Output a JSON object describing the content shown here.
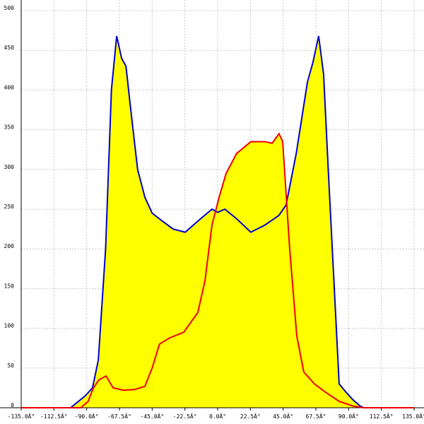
{
  "chart_data": {
    "type": "area",
    "xlim": [
      -135,
      135
    ],
    "ylim": [
      0,
      500
    ],
    "xticks": [
      {
        "value": -135,
        "label": "-135.0Â°"
      },
      {
        "value": -112.5,
        "label": "-112.5Â°"
      },
      {
        "value": -90,
        "label": "-90.0Â°"
      },
      {
        "value": -67.5,
        "label": "-67.5Â°"
      },
      {
        "value": -45,
        "label": "-45.0Â°"
      },
      {
        "value": -22.5,
        "label": "-22.5Â°"
      },
      {
        "value": 0,
        "label": "0.0Â°"
      },
      {
        "value": 22.5,
        "label": "22.5Â°"
      },
      {
        "value": 45,
        "label": "45.0Â°"
      },
      {
        "value": 67.5,
        "label": "67.5Â°"
      },
      {
        "value": 90,
        "label": "90.0Â°"
      },
      {
        "value": 112.5,
        "label": "112.5Â°"
      },
      {
        "value": 135,
        "label": "135.0Â°"
      }
    ],
    "yticks": [
      0,
      50,
      100,
      150,
      200,
      250,
      300,
      350,
      400,
      450,
      500
    ],
    "grid": true,
    "fill": "#ffff00",
    "series": [
      {
        "color": "#0000cc",
        "x": [
          -135,
          -101,
          -91,
          -86,
          -82,
          -77,
          -73,
          -69.4,
          -66,
          -63,
          -60,
          -55,
          -50,
          -45,
          -38,
          -30.6,
          -22.3,
          -13.6,
          -3.9,
          0,
          4.9,
          13,
          22.8,
          32.5,
          42,
          47,
          54,
          61.7,
          65.5,
          69.4,
          72.8,
          76,
          81,
          83.5,
          88,
          93,
          98,
          100.5,
          135
        ],
        "values": [
          0,
          0,
          15,
          25,
          60,
          200,
          400,
          468,
          440,
          430,
          380,
          300,
          265,
          245,
          235,
          225,
          221,
          235,
          250,
          246,
          250,
          238,
          221,
          230,
          242,
          255,
          320,
          410,
          435,
          468,
          420,
          300,
          120,
          30,
          20,
          10,
          2,
          0,
          0
        ]
      },
      {
        "color": "#ee0000",
        "x": [
          -135,
          -94,
          -89,
          -85.4,
          -81.6,
          -76.7,
          -71.8,
          -64.6,
          -57,
          -50,
          -45,
          -40,
          -33,
          -23.3,
          -13.6,
          -8.7,
          -3.9,
          1,
          5.8,
          13,
          22.8,
          32.5,
          37.4,
          42.2,
          44.7,
          49.5,
          54.4,
          59.2,
          66.5,
          73.8,
          83.5,
          93.2,
          100.5,
          135
        ],
        "values": [
          0,
          0,
          8,
          25,
          35,
          40,
          25,
          22,
          23,
          27,
          50,
          80,
          88,
          95,
          120,
          160,
          230,
          265,
          295,
          320,
          335,
          335,
          333,
          345,
          335,
          200,
          90,
          45,
          30,
          20,
          8,
          2,
          0,
          0
        ]
      }
    ]
  }
}
